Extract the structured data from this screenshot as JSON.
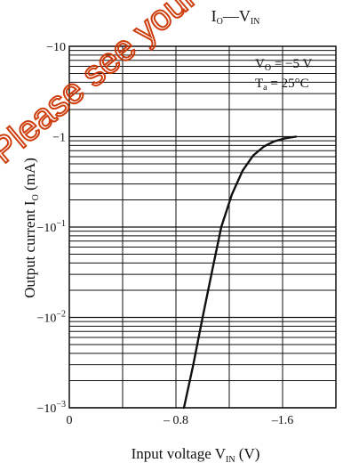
{
  "chart_data": {
    "type": "line",
    "title": {
      "main": "I",
      "main_sub": "O",
      "dash": "—",
      "second": "V",
      "second_sub": "IN"
    },
    "xlabel": {
      "main": "Input voltage  V",
      "sub": "IN",
      "unit": " (V)"
    },
    "ylabel": {
      "main": "Output current  I",
      "sub": "O",
      "unit": "  (mA)"
    },
    "annotation": {
      "line1_main": "V",
      "line1_sub": "O",
      "line1_value": " = −5 V",
      "line2_main": "T",
      "line2_sub": "a",
      "line2_value": " = 25°C"
    },
    "x": {
      "range": [
        0,
        -2.0
      ],
      "tick_values": [
        0,
        -0.8,
        -1.6
      ],
      "tick_labels": [
        "0",
        "– 0.8",
        "–1.6"
      ],
      "grid_values": [
        0,
        -0.4,
        -0.8,
        -1.2,
        -1.6,
        -2.0
      ]
    },
    "y": {
      "scale": "log",
      "range": [
        -0.001,
        -10
      ],
      "ticks": [
        {
          "value": -10,
          "prefix": "−10",
          "exp": ""
        },
        {
          "value": -1,
          "prefix": "−1",
          "exp": ""
        },
        {
          "value": -0.1,
          "prefix": "−10",
          "exp": "−1"
        },
        {
          "value": -0.01,
          "prefix": "−10",
          "exp": "−2"
        },
        {
          "value": -0.001,
          "prefix": "−10",
          "exp": "−3"
        }
      ]
    },
    "series": [
      {
        "x": [
          -0.86,
          -0.93,
          -1.0,
          -1.07,
          -1.14,
          -1.22,
          -1.3,
          -1.38,
          -1.46,
          -1.54,
          -1.62,
          -1.7
        ],
        "y": [
          -0.001,
          -0.003,
          -0.01,
          -0.032,
          -0.1,
          -0.23,
          -0.42,
          -0.62,
          -0.78,
          -0.89,
          -0.96,
          -1.0
        ],
        "color": "#111111"
      }
    ],
    "grid": true,
    "legend": "top-right"
  },
  "watermark": {
    "text": "Please see your sales offices.",
    "color": "#cc3300"
  }
}
